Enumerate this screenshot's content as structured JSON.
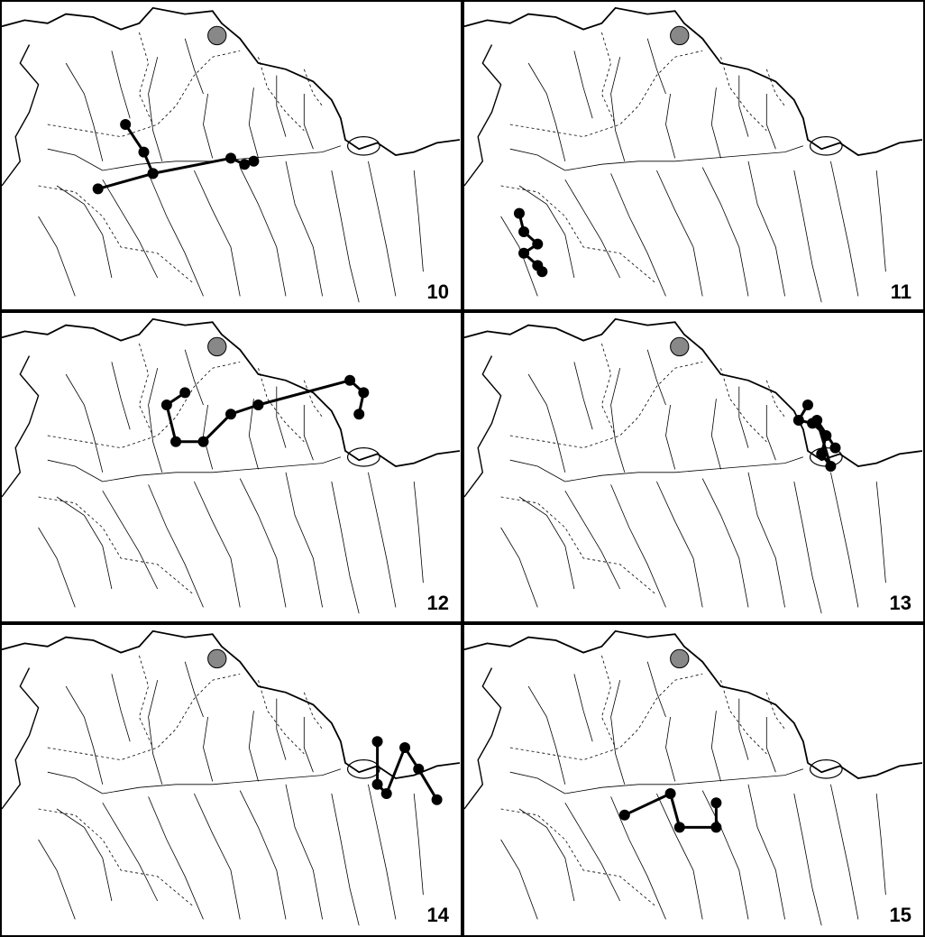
{
  "figure": {
    "panels": [
      {
        "number": "10",
        "route": [
          [
            0.27,
            0.4
          ],
          [
            0.31,
            0.49
          ],
          [
            0.33,
            0.56
          ],
          [
            0.21,
            0.61
          ],
          [
            0.33,
            0.56
          ],
          [
            0.5,
            0.51
          ],
          [
            0.53,
            0.53
          ],
          [
            0.55,
            0.52
          ]
        ]
      },
      {
        "number": "11",
        "route": [
          [
            0.12,
            0.69
          ],
          [
            0.13,
            0.75
          ],
          [
            0.16,
            0.79
          ],
          [
            0.13,
            0.82
          ],
          [
            0.16,
            0.86
          ],
          [
            0.17,
            0.88
          ]
        ]
      },
      {
        "number": "12",
        "route": [
          [
            0.4,
            0.26
          ],
          [
            0.36,
            0.3
          ],
          [
            0.38,
            0.42
          ],
          [
            0.44,
            0.42
          ],
          [
            0.5,
            0.33
          ],
          [
            0.56,
            0.3
          ],
          [
            0.76,
            0.22
          ],
          [
            0.79,
            0.26
          ],
          [
            0.78,
            0.33
          ]
        ]
      },
      {
        "number": "13",
        "route": [
          [
            0.75,
            0.3
          ],
          [
            0.73,
            0.35
          ],
          [
            0.76,
            0.36
          ],
          [
            0.79,
            0.4
          ],
          [
            0.78,
            0.46
          ],
          [
            0.8,
            0.5
          ],
          [
            0.77,
            0.35
          ],
          [
            0.81,
            0.44
          ]
        ]
      },
      {
        "number": "14",
        "route": [
          [
            0.82,
            0.38
          ],
          [
            0.82,
            0.52
          ],
          [
            0.84,
            0.55
          ],
          [
            0.88,
            0.4
          ],
          [
            0.91,
            0.47
          ],
          [
            0.95,
            0.57
          ]
        ]
      },
      {
        "number": "15",
        "route": [
          [
            0.35,
            0.62
          ],
          [
            0.45,
            0.55
          ],
          [
            0.47,
            0.66
          ],
          [
            0.55,
            0.66
          ],
          [
            0.55,
            0.58
          ]
        ]
      }
    ]
  }
}
